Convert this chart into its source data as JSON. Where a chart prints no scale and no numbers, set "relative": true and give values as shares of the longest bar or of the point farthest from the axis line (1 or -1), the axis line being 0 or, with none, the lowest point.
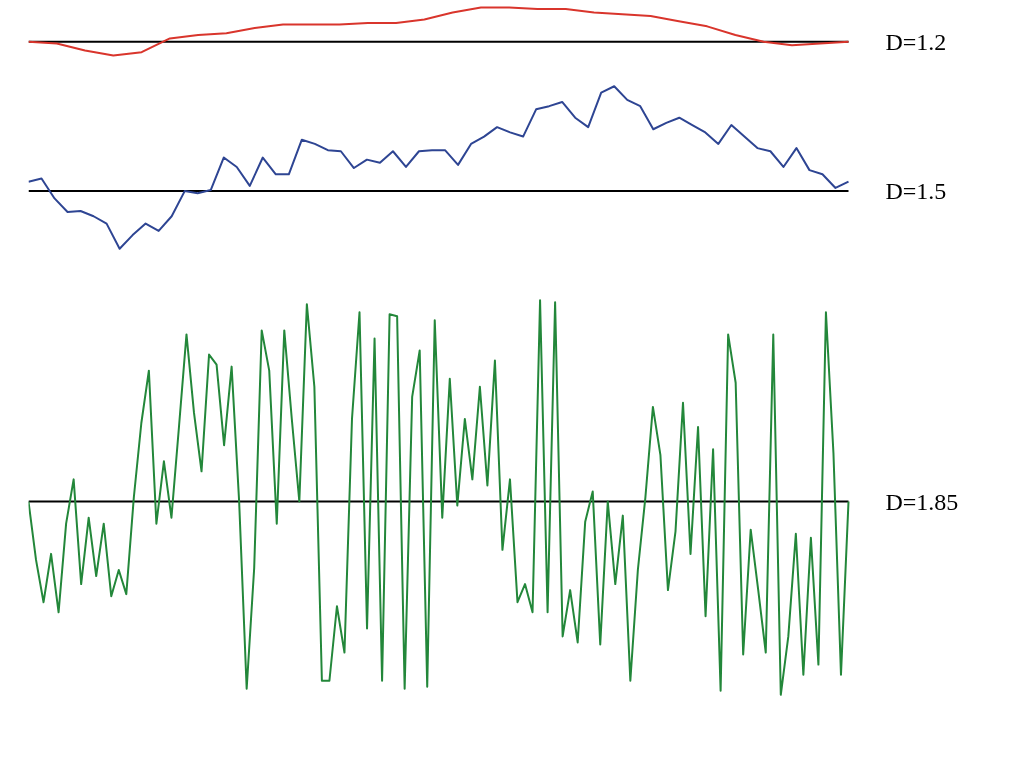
{
  "chart_data": [
    {
      "type": "line",
      "relative": true,
      "categories": [
        null,
        null,
        null,
        null,
        null,
        null,
        null,
        null,
        null,
        null,
        null,
        null,
        null,
        null,
        null,
        null,
        null,
        null,
        null,
        null,
        null,
        null,
        null,
        null,
        null,
        null,
        null,
        null,
        null,
        null
      ],
      "series": [
        {
          "name": "D=1.2",
          "color": "#d9352c",
          "values": [
            0,
            -0.05,
            -0.25,
            -0.4,
            -0.3,
            0.1,
            0.2,
            0.25,
            0.4,
            0.5,
            0.5,
            0.5,
            0.55,
            0.55,
            0.65,
            0.85,
            1.0,
            1.0,
            0.95,
            0.95,
            0.85,
            0.8,
            0.75,
            0.6,
            0.45,
            0.2,
            0,
            -0.1,
            -0.05,
            0
          ]
        }
      ]
    },
    {
      "type": "line",
      "relative": true,
      "categories": [
        null,
        null,
        null,
        null,
        null,
        null,
        null,
        null,
        null,
        null,
        null,
        null,
        null,
        null,
        null,
        null,
        null,
        null,
        null,
        null,
        null,
        null,
        null,
        null,
        null,
        null,
        null,
        null,
        null,
        null,
        null,
        null,
        null,
        null,
        null,
        null,
        null,
        null,
        null,
        null,
        null,
        null,
        null,
        null,
        null,
        null,
        null,
        null,
        null,
        null,
        null,
        null,
        null,
        null,
        null,
        null,
        null,
        null,
        null,
        null,
        null,
        null,
        null,
        null
      ],
      "series": [
        {
          "name": "D=1.5",
          "color": "#2e4593",
          "values": [
            0.09,
            0.12,
            -0.07,
            -0.2,
            -0.19,
            -0.24,
            -0.31,
            -0.55,
            -0.42,
            -0.31,
            -0.38,
            -0.24,
            0,
            -0.02,
            0.01,
            0.32,
            0.23,
            0.05,
            0.32,
            0.16,
            0.16,
            0.49,
            0.45,
            0.39,
            0.38,
            0.22,
            0.3,
            0.27,
            0.38,
            0.23,
            0.38,
            0.39,
            0.39,
            0.25,
            0.45,
            0.52,
            0.61,
            0.56,
            0.52,
            0.78,
            0.81,
            0.85,
            0.7,
            0.61,
            0.94,
            1.0,
            0.87,
            0.81,
            0.59,
            0.65,
            0.7,
            0.63,
            0.56,
            0.45,
            0.63,
            0.52,
            0.41,
            0.38,
            0.23,
            0.41,
            0.2,
            0.16,
            0.03,
            0.09
          ]
        }
      ]
    },
    {
      "type": "line",
      "relative": true,
      "categories": [
        null,
        null,
        null,
        null,
        null,
        null,
        null,
        null,
        null,
        null,
        null,
        null,
        null,
        null,
        null,
        null,
        null,
        null,
        null,
        null,
        null,
        null,
        null,
        null,
        null,
        null,
        null,
        null,
        null,
        null,
        null,
        null,
        null,
        null,
        null,
        null,
        null,
        null,
        null,
        null,
        null,
        null,
        null,
        null,
        null,
        null,
        null,
        null,
        null,
        null,
        null,
        null,
        null,
        null,
        null,
        null,
        null,
        null,
        null,
        null,
        null,
        null,
        null,
        null,
        null,
        null,
        null,
        null,
        null,
        null,
        null,
        null,
        null,
        null,
        null,
        null,
        null,
        null,
        null,
        null,
        null,
        null,
        null,
        null,
        null,
        null,
        null,
        null,
        null,
        null,
        null,
        null,
        null,
        null,
        null,
        null,
        null,
        null,
        null,
        null,
        null,
        null,
        null,
        null,
        null,
        null,
        null,
        null,
        null,
        null
      ],
      "series": [
        {
          "name": "D=1.85",
          "color": "#23873a",
          "values": [
            0,
            -0.29,
            -0.5,
            -0.26,
            -0.55,
            -0.11,
            0.11,
            -0.41,
            -0.08,
            -0.37,
            -0.11,
            -0.47,
            -0.34,
            -0.46,
            0.02,
            0.39,
            0.65,
            -0.11,
            0.2,
            -0.08,
            0.37,
            0.83,
            0.44,
            0.15,
            0.73,
            0.68,
            0.28,
            0.67,
            0,
            -0.93,
            -0.33,
            0.85,
            0.65,
            -0.11,
            0.85,
            0.41,
            0,
            0.98,
            0.57,
            -0.89,
            -0.89,
            -0.52,
            -0.75,
            0.41,
            0.94,
            -0.63,
            0.81,
            -0.89,
            0.93,
            0.92,
            -0.93,
            0.52,
            0.75,
            -0.92,
            0.9,
            -0.08,
            0.61,
            -0.02,
            0.41,
            0.11,
            0.57,
            0.08,
            0.7,
            -0.24,
            0.11,
            -0.5,
            -0.41,
            -0.55,
            1.0,
            -0.55,
            0.99,
            -0.67,
            -0.44,
            -0.7,
            -0.1,
            0.05,
            -0.71,
            0,
            -0.41,
            -0.07,
            -0.89,
            -0.34,
            0.02,
            0.47,
            0.23,
            -0.44,
            -0.15,
            0.49,
            -0.26,
            0.37,
            -0.57,
            0.26,
            -0.94,
            0.83,
            0.59,
            -0.76,
            -0.14,
            -0.44,
            -0.75,
            0.83,
            -0.96,
            -0.67,
            -0.16,
            -0.86,
            -0.18,
            -0.81,
            0.94,
            0.24,
            -0.86,
            0
          ]
        }
      ]
    }
  ]
}
